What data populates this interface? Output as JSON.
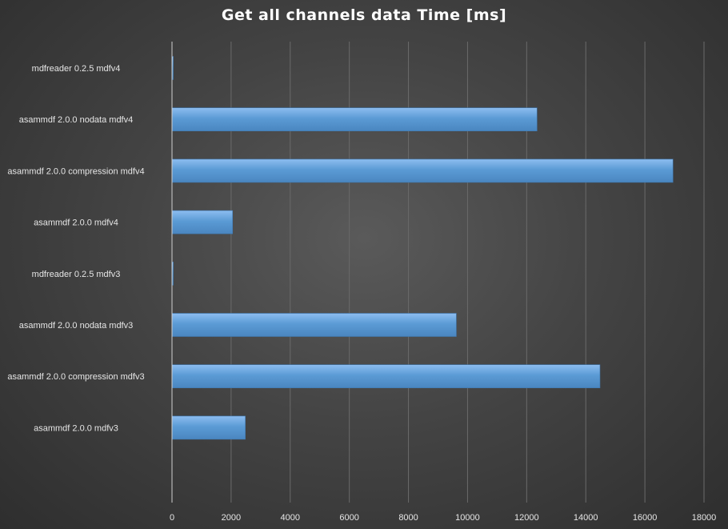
{
  "chart_data": {
    "type": "bar",
    "orientation": "horizontal",
    "title": "Get all channels data Time [ms]",
    "xlabel": "",
    "ylabel": "",
    "categories": [
      "mdfreader 0.2.5 mdfv4",
      "asammdf 2.0.0 nodata mdfv4",
      "asammdf 2.0.0 compression mdfv4",
      "asammdf 2.0.0 mdfv4",
      "mdfreader 0.2.5 mdfv3",
      "asammdf 2.0.0 nodata mdfv3",
      "asammdf 2.0.0 compression mdfv3",
      "asammdf 2.0.0 mdfv3"
    ],
    "values": [
      40,
      12350,
      16950,
      2050,
      30,
      9620,
      14480,
      2480
    ],
    "xlim": [
      0,
      18000
    ],
    "xticks": [
      0,
      2000,
      4000,
      6000,
      8000,
      10000,
      12000,
      14000,
      16000,
      18000
    ],
    "grid": true,
    "legend": "none",
    "colors": {
      "bar": "#5b9bd5",
      "bar_highlight": "#8dbdf0",
      "background": "#444444",
      "text": "#e6e6e6"
    }
  }
}
